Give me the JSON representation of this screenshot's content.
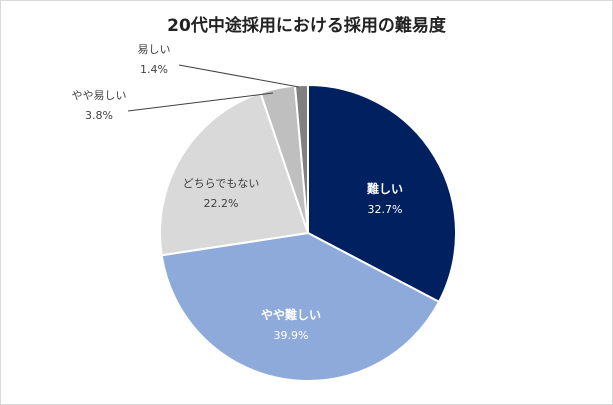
{
  "chart_data": {
    "type": "pie",
    "title": "20代中途採用における採用の難易度",
    "unit": "%",
    "slices": [
      {
        "label": "難しい",
        "value": 32.7,
        "value_text": "32.7%",
        "color": "#002060",
        "text_color": "#ffffff"
      },
      {
        "label": "やや難しい",
        "value": 39.9,
        "value_text": "39.9%",
        "color": "#8eaadb",
        "text_color": "#ffffff"
      },
      {
        "label": "どちらでもない",
        "value": 22.2,
        "value_text": "22.2%",
        "color": "#d9d9d9",
        "text_color": "#404040"
      },
      {
        "label": "やや易しい",
        "value": 3.8,
        "value_text": "3.8%",
        "color": "#bfbfbf",
        "text_color": "#404040"
      },
      {
        "label": "易しい",
        "value": 1.4,
        "value_text": "1.4%",
        "color": "#808080",
        "text_color": "#404040"
      }
    ]
  }
}
